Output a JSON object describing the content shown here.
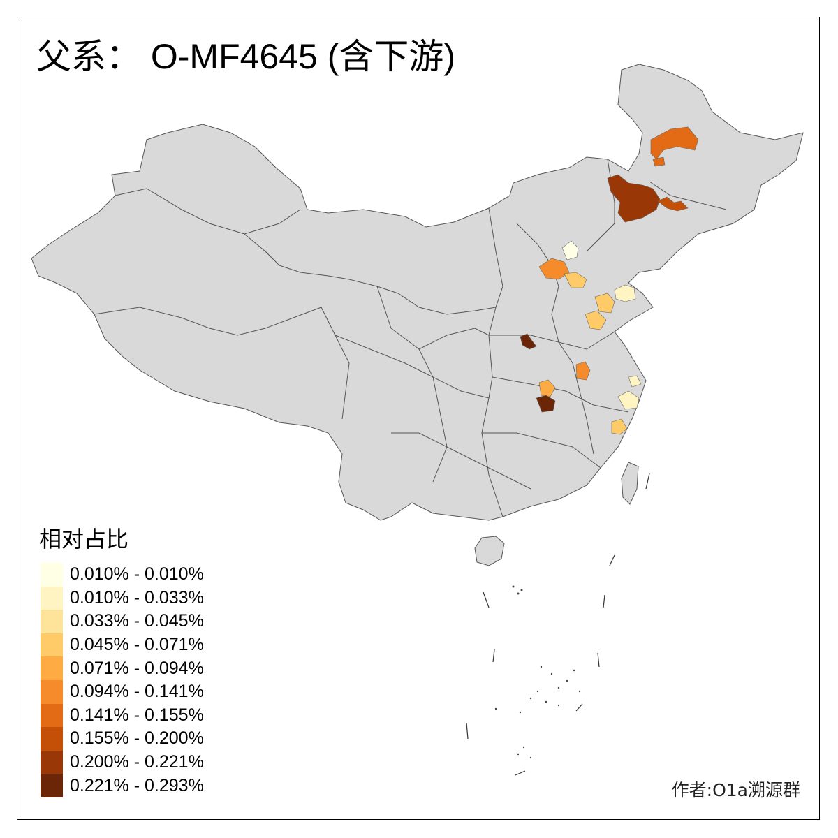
{
  "map": {
    "title": "父系： O-MF4645 (含下游)",
    "author": "作者:O1a溯源群",
    "land_color": "#d9d9d9",
    "border_color": "#555555"
  },
  "legend": {
    "title": "相对占比",
    "items": [
      {
        "label": "0.010% - 0.010%",
        "color": "#ffffe5"
      },
      {
        "label": "0.010% - 0.033%",
        "color": "#fff4c2"
      },
      {
        "label": "0.033% - 0.045%",
        "color": "#fee49a"
      },
      {
        "label": "0.045% - 0.071%",
        "color": "#fecb68"
      },
      {
        "label": "0.071% - 0.094%",
        "color": "#feab43"
      },
      {
        "label": "0.094% - 0.141%",
        "color": "#f58b2a"
      },
      {
        "label": "0.141% - 0.155%",
        "color": "#e36b15"
      },
      {
        "label": "0.155% - 0.200%",
        "color": "#c44f07"
      },
      {
        "label": "0.200% - 0.221%",
        "color": "#993706"
      },
      {
        "label": "0.221% - 0.293%",
        "color": "#6a2606"
      }
    ]
  },
  "regions": [
    {
      "name": "heilongjiang-north",
      "color_class": 6
    },
    {
      "name": "jilin-west-large",
      "color_class": 8
    },
    {
      "name": "jilin-east",
      "color_class": 7
    },
    {
      "name": "beijing",
      "color_class": 0
    },
    {
      "name": "hebei-west",
      "color_class": 5
    },
    {
      "name": "hebei-south",
      "color_class": 3
    },
    {
      "name": "shandong-north",
      "color_class": 3
    },
    {
      "name": "shandong-east",
      "color_class": 1
    },
    {
      "name": "shandong-south",
      "color_class": 3
    },
    {
      "name": "henan-north",
      "color_class": 9
    },
    {
      "name": "anhui",
      "color_class": 5
    },
    {
      "name": "hubei-north",
      "color_class": 4
    },
    {
      "name": "hubei-center",
      "color_class": 9
    },
    {
      "name": "jiangsu-south",
      "color_class": 1
    },
    {
      "name": "zhejiang-north",
      "color_class": 2
    },
    {
      "name": "zhejiang-south",
      "color_class": 3
    }
  ]
}
